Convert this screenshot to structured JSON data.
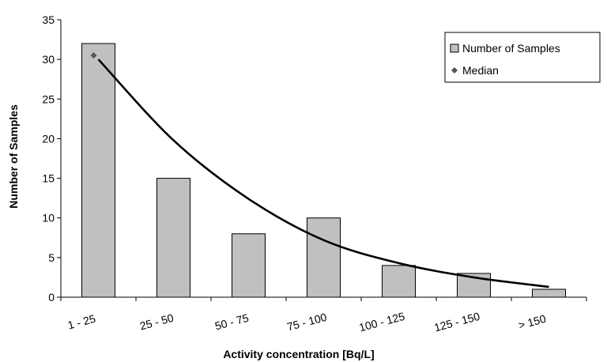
{
  "chart_data": {
    "type": "bar",
    "title": "",
    "xlabel": "Activity concentration [Bq/L]",
    "ylabel": "Number of Samples",
    "categories": [
      "1 - 25",
      "25 - 50",
      "50 - 75",
      "75 - 100",
      "100 - 125",
      "125 - 150",
      "> 150"
    ],
    "series": [
      {
        "name": "Number of Samples",
        "type": "bar",
        "values": [
          32,
          15,
          8,
          10,
          4,
          3,
          1
        ],
        "color": "#c0c0c0"
      },
      {
        "name": "Median",
        "type": "scatter",
        "values": [
          30.5,
          null,
          null,
          null,
          null,
          null,
          null
        ],
        "color": "#555555"
      }
    ],
    "trendline": {
      "type": "exponential",
      "color": "#000000",
      "values": [
        30,
        19.8,
        12.4,
        7.2,
        4.3,
        2.5,
        1.3
      ]
    },
    "ylim": [
      0,
      35
    ],
    "yticks": [
      "0",
      "5",
      "10",
      "15",
      "20",
      "25",
      "30",
      "35"
    ],
    "grid": false,
    "legend_position": "top-right"
  }
}
